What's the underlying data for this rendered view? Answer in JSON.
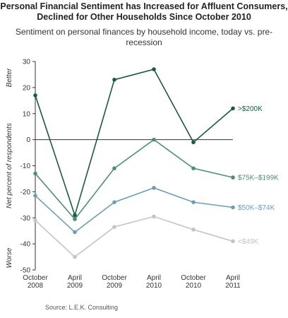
{
  "chart_data": {
    "type": "line",
    "title": "Personal Financial Sentiment has Increased for Affluent Consumers, Declined for Other Households Since October 2010",
    "subtitle": "Sentiment on personal finances by household income, today vs. pre-recession",
    "ylabel": "Net percent of respondents",
    "ylabel_top": "Better",
    "ylabel_bottom": "Worse",
    "ylim": [
      -50,
      30
    ],
    "yticks": [
      30,
      20,
      10,
      0,
      -10,
      -20,
      -30,
      -40,
      -50
    ],
    "categories": [
      [
        "October",
        "2008"
      ],
      [
        "April",
        "2009"
      ],
      [
        "October",
        "2009"
      ],
      [
        "April",
        "2010"
      ],
      [
        "October",
        "2010"
      ],
      [
        "April",
        "2011"
      ]
    ],
    "series": [
      {
        "name": ">$200K",
        "color": "#1d5a3c",
        "values": [
          17,
          -29,
          23,
          27,
          -1,
          12
        ]
      },
      {
        "name": "$75K–$199K",
        "color": "#4f8c78",
        "values": [
          -13,
          -30.5,
          -11,
          0,
          -11,
          -14.5
        ]
      },
      {
        "name": "$50K–$74K",
        "color": "#6d9fb0",
        "values": [
          -21.5,
          -35.5,
          -24,
          -18.5,
          -24,
          -26
        ]
      },
      {
        "name": "<$49K",
        "color": "#c4c4c4",
        "values": [
          -31,
          -45,
          -33.5,
          -29.5,
          -34.5,
          -39
        ]
      }
    ],
    "grid": false,
    "source": "Source:  L.E.K. Consulting"
  }
}
